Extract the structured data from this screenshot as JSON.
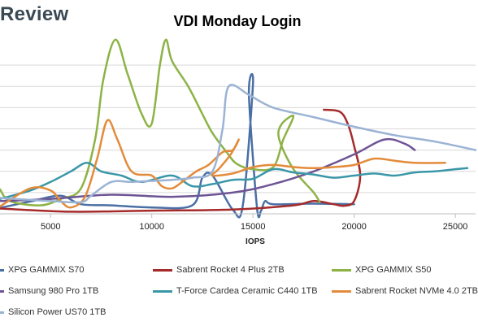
{
  "brand": "Review",
  "chart_data": {
    "type": "scatter",
    "title": "VDI Monday Login",
    "xlabel": "IOPS",
    "ylabel": "",
    "xlim": [
      2500,
      26000
    ],
    "ylim": [
      0,
      800
    ],
    "x_ticks": [
      5000,
      10000,
      15000,
      20000,
      25000
    ],
    "grid": "horizontal",
    "legend_position": "bottom",
    "series": [
      {
        "name": "XPG GAMMIX S70",
        "color": "#4a6fa5",
        "points": [
          [
            2500,
            28
          ],
          [
            4000,
            58
          ],
          [
            5500,
            85
          ],
          [
            6500,
            45
          ],
          [
            8000,
            40
          ],
          [
            10000,
            30
          ],
          [
            12000,
            40
          ],
          [
            12500,
            170
          ],
          [
            13000,
            180
          ],
          [
            14000,
            20
          ],
          [
            14500,
            40
          ],
          [
            15000,
            610
          ],
          [
            14800,
            560
          ],
          [
            15200,
            30
          ],
          [
            15400,
            15
          ],
          [
            15600,
            60
          ],
          [
            16000,
            45
          ],
          [
            18000,
            48
          ],
          [
            20000,
            45
          ]
        ]
      },
      {
        "name": "Sabrent Rocket 4 Plus 2TB",
        "color": "#a52a2a",
        "points": [
          [
            2500,
            25
          ],
          [
            6000,
            10
          ],
          [
            10000,
            15
          ],
          [
            14000,
            20
          ],
          [
            17000,
            40
          ],
          [
            18000,
            60
          ],
          [
            19000,
            45
          ],
          [
            19500,
            38
          ],
          [
            20000,
            60
          ],
          [
            20300,
            180
          ],
          [
            20000,
            320
          ],
          [
            19700,
            420
          ],
          [
            19300,
            480
          ],
          [
            18500,
            490
          ]
        ]
      },
      {
        "name": "XPG GAMMIX S50",
        "color": "#8db346",
        "points": [
          [
            2500,
            115
          ],
          [
            3000,
            60
          ],
          [
            4500,
            40
          ],
          [
            5500,
            70
          ],
          [
            6500,
            120
          ],
          [
            7200,
            350
          ],
          [
            7600,
            630
          ],
          [
            8200,
            820
          ],
          [
            8800,
            660
          ],
          [
            9500,
            470
          ],
          [
            10000,
            425
          ],
          [
            10400,
            700
          ],
          [
            10700,
            820
          ],
          [
            11000,
            720
          ],
          [
            11800,
            600
          ],
          [
            12500,
            470
          ],
          [
            13000,
            380
          ],
          [
            13700,
            290
          ],
          [
            14200,
            235
          ],
          [
            15000,
            210
          ],
          [
            16000,
            220
          ],
          [
            16500,
            350
          ],
          [
            17000,
            460
          ],
          [
            16400,
            420
          ],
          [
            16300,
            350
          ],
          [
            17000,
            210
          ],
          [
            18000,
            100
          ],
          [
            18300,
            55
          ]
        ]
      },
      {
        "name": "Samsung 980 Pro 1TB",
        "color": "#6e5494",
        "points": [
          [
            2500,
            60
          ],
          [
            5000,
            70
          ],
          [
            8000,
            90
          ],
          [
            11000,
            80
          ],
          [
            14000,
            100
          ],
          [
            16000,
            140
          ],
          [
            18000,
            200
          ],
          [
            20000,
            280
          ],
          [
            21500,
            350
          ],
          [
            22500,
            330
          ],
          [
            23000,
            300
          ]
        ]
      },
      {
        "name": "T-Force Cardea Ceramic C440 1TB",
        "color": "#3a97a8",
        "points": [
          [
            2500,
            70
          ],
          [
            4000,
            110
          ],
          [
            5000,
            150
          ],
          [
            6000,
            200
          ],
          [
            6800,
            240
          ],
          [
            7500,
            200
          ],
          [
            8500,
            180
          ],
          [
            9500,
            150
          ],
          [
            11000,
            180
          ],
          [
            12000,
            130
          ],
          [
            13000,
            140
          ],
          [
            14000,
            160
          ],
          [
            15000,
            165
          ],
          [
            16000,
            210
          ],
          [
            17000,
            195
          ],
          [
            18000,
            185
          ],
          [
            19000,
            170
          ],
          [
            20000,
            180
          ],
          [
            21000,
            190
          ],
          [
            22000,
            180
          ],
          [
            23000,
            195
          ],
          [
            24000,
            200
          ],
          [
            25000,
            210
          ],
          [
            25600,
            215
          ]
        ]
      },
      {
        "name": "Sabrent Rocket NVMe 4.0 2TB",
        "color": "#e38b3b",
        "points": [
          [
            2500,
            35
          ],
          [
            4000,
            120
          ],
          [
            5000,
            110
          ],
          [
            5500,
            60
          ],
          [
            6000,
            30
          ],
          [
            6700,
            80
          ],
          [
            7300,
            260
          ],
          [
            7800,
            440
          ],
          [
            8300,
            350
          ],
          [
            9000,
            200
          ],
          [
            10000,
            180
          ],
          [
            10500,
            130
          ],
          [
            11000,
            120
          ],
          [
            11500,
            150
          ],
          [
            12200,
            200
          ],
          [
            12800,
            230
          ],
          [
            13500,
            290
          ],
          [
            14000,
            300
          ],
          [
            14300,
            350
          ],
          [
            13900,
            280
          ],
          [
            13300,
            210
          ],
          [
            13000,
            180
          ],
          [
            14000,
            190
          ],
          [
            15000,
            220
          ],
          [
            16000,
            230
          ],
          [
            17000,
            220
          ],
          [
            18000,
            215
          ],
          [
            19000,
            220
          ],
          [
            20000,
            230
          ],
          [
            21000,
            260
          ],
          [
            22000,
            250
          ],
          [
            23000,
            240
          ],
          [
            24500,
            240
          ]
        ]
      },
      {
        "name": "Silicon Power US70 1TB",
        "color": "#9bb3d4",
        "points": [
          [
            2500,
            75
          ],
          [
            5000,
            60
          ],
          [
            6500,
            55
          ],
          [
            7000,
            85
          ],
          [
            8000,
            150
          ],
          [
            9000,
            150
          ],
          [
            10000,
            155
          ],
          [
            11000,
            160
          ],
          [
            12000,
            170
          ],
          [
            13000,
            200
          ],
          [
            13500,
            400
          ],
          [
            13800,
            600
          ],
          [
            14800,
            560
          ],
          [
            16000,
            500
          ],
          [
            18000,
            455
          ],
          [
            20000,
            410
          ],
          [
            22000,
            370
          ],
          [
            24000,
            340
          ],
          [
            26000,
            300
          ]
        ]
      }
    ]
  }
}
